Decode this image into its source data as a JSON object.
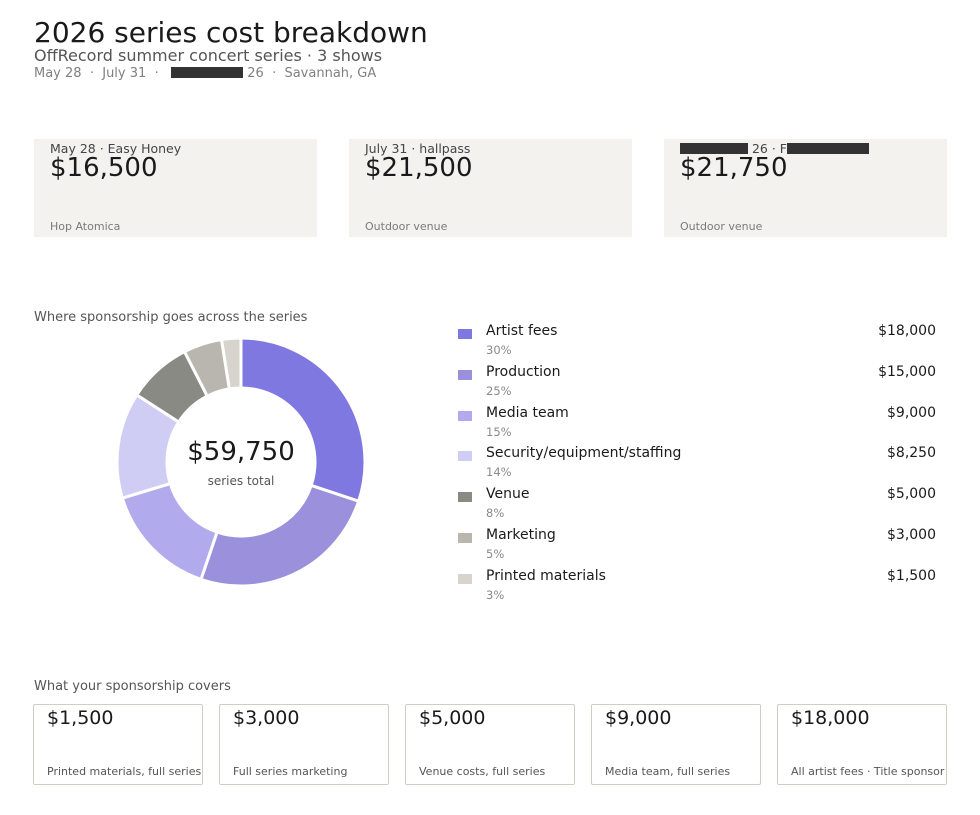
{
  "header": {
    "title": "2026 series cost breakdown",
    "subtitle": "OffRecord summer concert series · 3 shows",
    "dates": {
      "first": "May 28",
      "sep1": "·",
      "second": "July 31",
      "sep2": "·",
      "third_suffix": "26",
      "sep3": "·",
      "location": "Savannah, GA"
    }
  },
  "shows": [
    {
      "label": "May 28 · Easy Honey",
      "amount": "$16,500",
      "venue": "Hop Atomica"
    },
    {
      "label": "July 31 · hallpass",
      "amount": "$21,500",
      "venue": "Outdoor venue"
    },
    {
      "label_mid": "26 · F",
      "amount": "$21,750",
      "venue": "Outdoor venue"
    }
  ],
  "breakdown": {
    "section_title": "Where sponsorship goes across the series",
    "center_total": "$59,750",
    "center_label": "series total"
  },
  "chart_data": {
    "type": "pie",
    "donut": true,
    "total": 59750,
    "categories": [
      "Artist fees",
      "Production",
      "Media team",
      "Security/equipment/staffing",
      "Venue",
      "Marketing",
      "Printed materials"
    ],
    "values": [
      18000,
      15000,
      9000,
      8250,
      5000,
      3000,
      1500
    ],
    "value_labels": [
      "$18,000",
      "$15,000",
      "$9,000",
      "$8,250",
      "$5,000",
      "$3,000",
      "$1,500"
    ],
    "percent_labels": [
      "30%",
      "25%",
      "15%",
      "14%",
      "8%",
      "5%",
      "3%"
    ],
    "colors": [
      "#7f78e0",
      "#9a90dc",
      "#b1aaec",
      "#d0cdf4",
      "#8a8a84",
      "#b8b6ae",
      "#d6d4cc"
    ],
    "legend_position": "right"
  },
  "covers": {
    "title": "What your sponsorship covers",
    "tiers": [
      {
        "amount": "$1,500",
        "desc": "Printed materials, full series"
      },
      {
        "amount": "$3,000",
        "desc": "Full series marketing"
      },
      {
        "amount": "$5,000",
        "desc": "Venue costs, full series"
      },
      {
        "amount": "$9,000",
        "desc": "Media team, full series"
      },
      {
        "amount": "$18,000",
        "desc": "All artist fees · Title sponsor"
      }
    ]
  }
}
